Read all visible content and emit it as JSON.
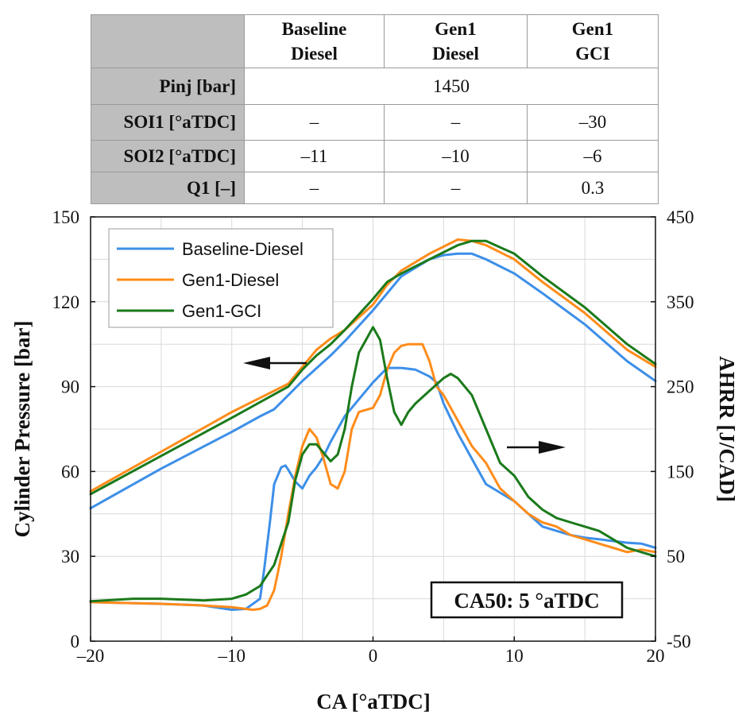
{
  "table": {
    "headers": [
      {
        "line1": "Baseline",
        "line2": "Diesel"
      },
      {
        "line1": "Gen1",
        "line2": "Diesel"
      },
      {
        "line1": "Gen1",
        "line2": "GCI"
      }
    ],
    "rows": [
      {
        "label": "Pinj [bar]",
        "merged": "1450"
      },
      {
        "label": "SOI1 [°aTDC]",
        "values": [
          "–",
          "–",
          "–30"
        ]
      },
      {
        "label": "SOI2 [°aTDC]",
        "values": [
          "–11",
          "–10",
          "–6"
        ]
      },
      {
        "label": "Q1 [–]",
        "values": [
          "–",
          "–",
          "0.3"
        ]
      }
    ]
  },
  "chart_data": {
    "type": "line",
    "xlabel": "CA [°aTDC]",
    "ylabel": "Cylinder Pressure [bar]",
    "y2label": "AHRR [J/CAD]",
    "xlim": [
      -20,
      20
    ],
    "ylim": [
      0,
      150
    ],
    "y2lim": [
      -50,
      450
    ],
    "xticks": [
      -20,
      -10,
      0,
      10,
      20
    ],
    "xtick_labels": [
      "–20",
      "–10",
      "0",
      "10",
      "20"
    ],
    "yticks": [
      0,
      30,
      60,
      90,
      120,
      150
    ],
    "ytick_labels": [
      "0",
      "30",
      "60",
      "90",
      "120",
      "150"
    ],
    "y2ticks": [
      -50,
      50,
      150,
      250,
      350,
      450
    ],
    "y2tick_labels": [
      "-50",
      "50",
      "150",
      "250",
      "350",
      "450"
    ],
    "grid": true,
    "legend_position": "top-left",
    "annotation": "CA50: 5 °aTDC",
    "colors": {
      "baseline": "#3d8fe8",
      "gen1_diesel": "#ff8c1a",
      "gen1_gci": "#1a7a1a"
    },
    "series": [
      {
        "name": "Baseline-Diesel",
        "color": "#3d8fe8",
        "axis": "pressure",
        "x": [
          -20,
          -15,
          -10,
          -8,
          -7,
          -6,
          -5,
          -3,
          -2,
          0,
          2,
          4,
          5,
          6,
          7,
          8,
          10,
          12,
          15,
          18,
          20
        ],
        "y": [
          47,
          61,
          74,
          79.5,
          82,
          87,
          92,
          101,
          106,
          117,
          129,
          135,
          136.5,
          137,
          137,
          135,
          130,
          123,
          112,
          99,
          92
        ]
      },
      {
        "name": "Gen1-Diesel",
        "color": "#ff8c1a",
        "axis": "pressure",
        "x": [
          -20,
          -15,
          -10,
          -8,
          -6,
          -5,
          -4,
          -3,
          -2,
          0,
          1,
          2,
          4,
          6,
          7,
          8,
          10,
          12,
          15,
          18,
          20
        ],
        "y": [
          53,
          67,
          81,
          86,
          91,
          97,
          103,
          107,
          110,
          119,
          126,
          131,
          137,
          142,
          141.5,
          140,
          135,
          127,
          116,
          103,
          97
        ]
      },
      {
        "name": "Gen1-GCI",
        "color": "#1a7a1a",
        "axis": "pressure",
        "x": [
          -20,
          -15,
          -10,
          -8,
          -6,
          -5,
          -4,
          -3,
          -2,
          0,
          1,
          2,
          4,
          6,
          7,
          8,
          10,
          12,
          15,
          18,
          20
        ],
        "y": [
          52,
          65.5,
          79,
          84.5,
          90,
          96,
          101,
          105,
          110,
          121,
          127,
          130,
          135,
          140,
          141.5,
          141.5,
          137,
          129,
          118,
          105,
          98
        ]
      },
      {
        "name": "Baseline-Diesel AHRR",
        "color": "#3d8fe8",
        "axis": "ahrr",
        "x": [
          -20,
          -15,
          -12,
          -10,
          -9,
          -8,
          -7.7,
          -7.3,
          -7,
          -6.5,
          -6.2,
          -6,
          -5.5,
          -5,
          -4.5,
          -4,
          -3.5,
          -3,
          -2,
          -1,
          0,
          1,
          2,
          3,
          4,
          4.5,
          5,
          6,
          7,
          8,
          9,
          10,
          11,
          12,
          13,
          14,
          15,
          16,
          17,
          18,
          19,
          20
        ],
        "y": [
          -4,
          -6,
          -8,
          -13,
          -12,
          0,
          35,
          90,
          135,
          155,
          157,
          152,
          138,
          130,
          145,
          155,
          168,
          185,
          215,
          235,
          255,
          272,
          272,
          270,
          262,
          255,
          230,
          195,
          165,
          135,
          125,
          115,
          100,
          85,
          80,
          75,
          72,
          70,
          68,
          66,
          65,
          60
        ]
      },
      {
        "name": "Gen1-Diesel AHRR",
        "color": "#ff8c1a",
        "axis": "ahrr",
        "x": [
          -20,
          -15,
          -12,
          -10,
          -9,
          -8.5,
          -8,
          -7.5,
          -7,
          -6.5,
          -6,
          -5.5,
          -5,
          -4.5,
          -4,
          -3.5,
          -3,
          -2.5,
          -2,
          -1.5,
          -1,
          0,
          0.5,
          1,
          1.5,
          2,
          2.5,
          3,
          3.5,
          4,
          4.5,
          5,
          6,
          7,
          8,
          9,
          10,
          11,
          12,
          13,
          14,
          15,
          16,
          17,
          18,
          19,
          20
        ],
        "y": [
          -4,
          -6,
          -8,
          -10,
          -12,
          -13,
          -12,
          -8,
          10,
          50,
          100,
          145,
          180,
          200,
          190,
          165,
          135,
          130,
          150,
          200,
          220,
          225,
          240,
          270,
          290,
          298,
          300,
          300,
          300,
          280,
          250,
          240,
          210,
          180,
          160,
          130,
          115,
          100,
          90,
          85,
          75,
          70,
          65,
          60,
          55,
          58,
          55
        ]
      },
      {
        "name": "Gen1-GCI AHRR",
        "color": "#1a7a1a",
        "axis": "ahrr",
        "x": [
          -20,
          -17,
          -15,
          -12,
          -10,
          -9,
          -8,
          -7,
          -6,
          -5.5,
          -5,
          -4.5,
          -4,
          -3.5,
          -3,
          -2.5,
          -2,
          -1.5,
          -1,
          -0.5,
          0,
          0.5,
          1,
          1.5,
          2,
          2.5,
          3,
          4,
          5,
          5.5,
          6,
          7,
          8,
          9,
          10,
          11,
          12,
          13,
          14,
          15,
          16,
          17,
          18,
          19,
          20
        ],
        "y": [
          -3,
          0,
          0,
          -2,
          0,
          5,
          15,
          40,
          90,
          140,
          170,
          182,
          182,
          172,
          162,
          170,
          200,
          250,
          290,
          305,
          320,
          305,
          260,
          220,
          205,
          220,
          230,
          245,
          260,
          265,
          260,
          240,
          200,
          160,
          145,
          120,
          105,
          95,
          90,
          85,
          80,
          70,
          60,
          55,
          50
        ]
      }
    ]
  }
}
